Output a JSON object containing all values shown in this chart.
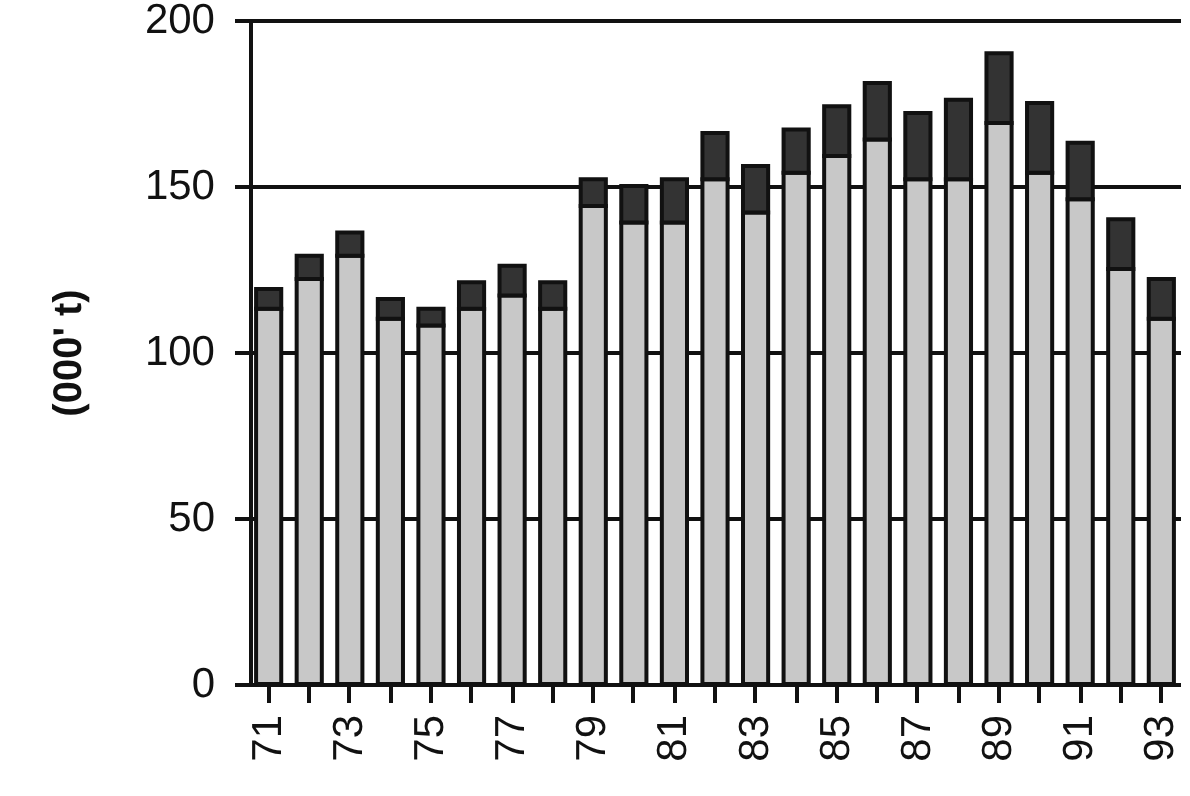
{
  "chart_data": {
    "type": "bar",
    "stacked": true,
    "ylabel": "(000' t)",
    "categories": [
      "71",
      null,
      "73",
      null,
      "75",
      null,
      "77",
      null,
      "79",
      null,
      "81",
      null,
      "83",
      null,
      "85",
      null,
      "87",
      null,
      "89",
      null,
      "91",
      null,
      "93"
    ],
    "series": [
      {
        "color": "#c8c8c8",
        "values": [
          113,
          122,
          129,
          110,
          108,
          113,
          117,
          113,
          144,
          139,
          139,
          152,
          142,
          154,
          159,
          164,
          152,
          152,
          169,
          154,
          146,
          125,
          110
        ]
      },
      {
        "color": "#333333",
        "values": [
          6,
          7,
          7,
          6,
          5,
          8,
          9,
          8,
          8,
          11,
          13,
          14,
          14,
          13,
          15,
          17,
          20,
          24,
          21,
          21,
          17,
          15,
          12
        ]
      }
    ],
    "ylim": [
      0,
      200
    ],
    "yticks": [
      0,
      50,
      100,
      150,
      200
    ],
    "grid": "y",
    "legend": false
  }
}
